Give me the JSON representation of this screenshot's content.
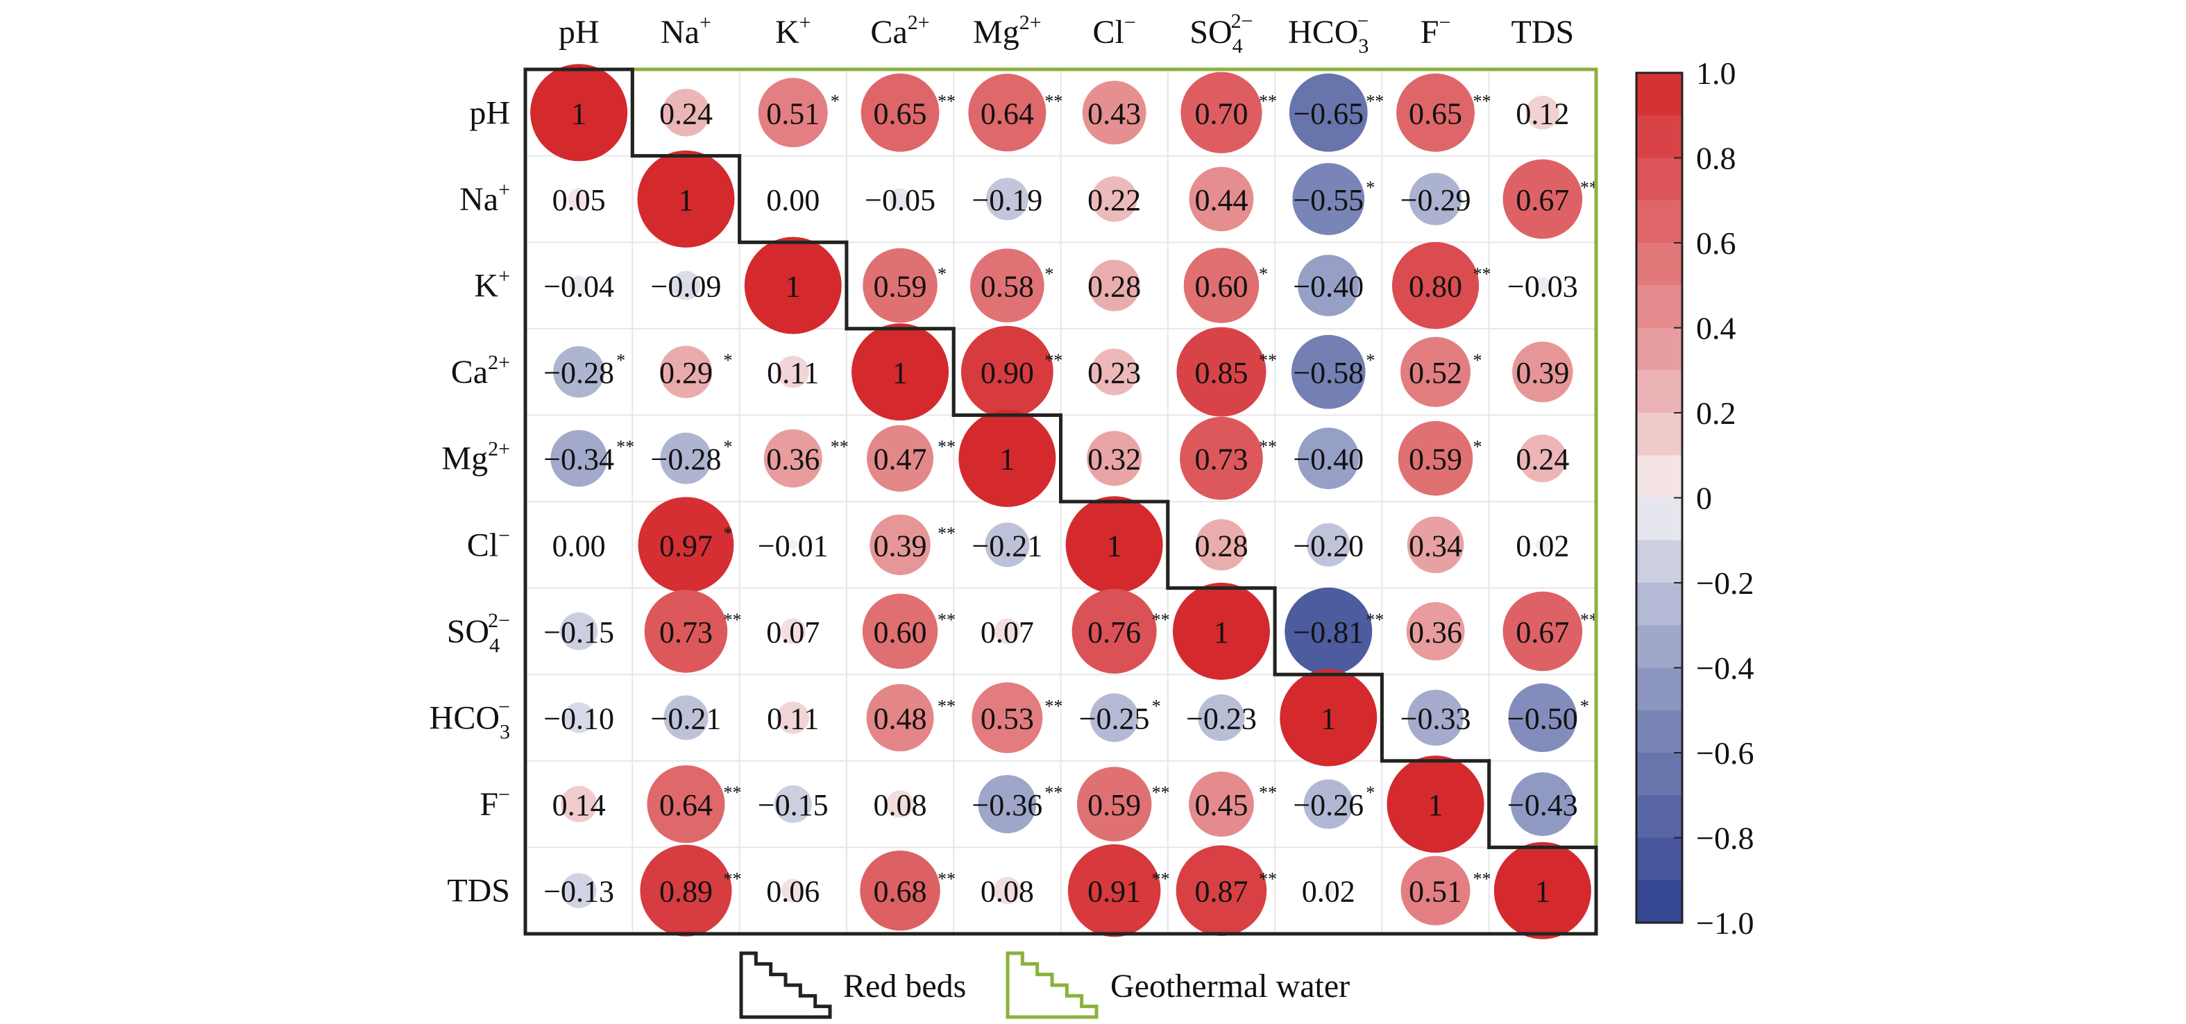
{
  "chart_data": {
    "type": "heatmap",
    "variables": [
      {
        "base": "pH",
        "sup": "",
        "sub": ""
      },
      {
        "base": "Na",
        "sup": "+",
        "sub": ""
      },
      {
        "base": "K",
        "sup": "+",
        "sub": ""
      },
      {
        "base": "Ca",
        "sup": "2+",
        "sub": ""
      },
      {
        "base": "Mg",
        "sup": "2+",
        "sub": ""
      },
      {
        "base": "Cl",
        "sup": "−",
        "sub": ""
      },
      {
        "base": "SO",
        "sup": "2−",
        "sub": "4"
      },
      {
        "base": "HCO",
        "sup": "−",
        "sub": "3"
      },
      {
        "base": "F",
        "sup": "−",
        "sub": ""
      },
      {
        "base": "TDS",
        "sup": "",
        "sub": ""
      }
    ],
    "matrix": [
      [
        "1",
        "0.24",
        "0.51",
        "0.65",
        "0.64",
        "0.43",
        "0.70",
        "−0.65",
        "0.65",
        "0.12"
      ],
      [
        "0.05",
        "1",
        "0.00",
        "−0.05",
        "−0.19",
        "0.22",
        "0.44",
        "−0.55",
        "−0.29",
        "0.67"
      ],
      [
        "−0.04",
        "−0.09",
        "1",
        "0.59",
        "0.58",
        "0.28",
        "0.60",
        "−0.40",
        "0.80",
        "−0.03"
      ],
      [
        "−0.28",
        "0.29",
        "0.11",
        "1",
        "0.90",
        "0.23",
        "0.85",
        "−0.58",
        "0.52",
        "0.39"
      ],
      [
        "−0.34",
        "−0.28",
        "0.36",
        "0.47",
        "1",
        "0.32",
        "0.73",
        "−0.40",
        "0.59",
        "0.24"
      ],
      [
        "0.00",
        "0.97",
        "−0.01",
        "0.39",
        "−0.21",
        "1",
        "0.28",
        "−0.20",
        "0.34",
        "0.02"
      ],
      [
        "−0.15",
        "0.73",
        "0.07",
        "0.60",
        "0.07",
        "0.76",
        "1",
        "−0.81",
        "0.36",
        "0.67"
      ],
      [
        "−0.10",
        "−0.21",
        "0.11",
        "0.48",
        "0.53",
        "−0.25",
        "−0.23",
        "1",
        "−0.33",
        "−0.50"
      ],
      [
        "0.14",
        "0.64",
        "−0.15",
        "0.08",
        "−0.36",
        "0.59",
        "0.45",
        "−0.26",
        "1",
        "−0.43"
      ],
      [
        "−0.13",
        "0.89",
        "0.06",
        "0.68",
        "0.08",
        "0.91",
        "0.87",
        "0.02",
        "0.51",
        "1"
      ]
    ],
    "significance": [
      [
        "",
        "",
        "*",
        "**",
        "**",
        "",
        "**",
        "**",
        "**",
        ""
      ],
      [
        "",
        "",
        "",
        "",
        "",
        "",
        "",
        "*",
        "",
        "**"
      ],
      [
        "",
        "",
        "",
        "*",
        "*",
        "",
        "*",
        "",
        "**",
        ""
      ],
      [
        "*",
        "*",
        "",
        "",
        "**",
        "",
        "**",
        "*",
        "*",
        ""
      ],
      [
        "**",
        "*",
        "**",
        "**",
        "",
        "",
        "**",
        "",
        "*",
        ""
      ],
      [
        "",
        "*",
        "",
        "**",
        "",
        "",
        "",
        "",
        "",
        ""
      ],
      [
        "",
        "**",
        "",
        "**",
        "",
        "**",
        "",
        "**",
        "",
        "**"
      ],
      [
        "",
        "",
        "",
        "**",
        "**",
        "*",
        "",
        "",
        "",
        "*"
      ],
      [
        "",
        "**",
        "",
        "",
        "**",
        "**",
        "**",
        "*",
        "",
        ""
      ],
      [
        "",
        "**",
        "",
        "**",
        "",
        "**",
        "**",
        "",
        "**",
        ""
      ]
    ],
    "colorbar": {
      "range": [
        -1.0,
        1.0
      ],
      "ticks": [
        "1.0",
        "0.8",
        "0.6",
        "0.4",
        "0.2",
        "0",
        "−0.2",
        "−0.4",
        "−0.6",
        "−0.8",
        "−1.0"
      ],
      "tick_values": [
        1.0,
        0.8,
        0.6,
        0.4,
        0.2,
        0,
        -0.2,
        -0.4,
        -0.6,
        -0.8,
        -1.0
      ],
      "positive_color": "#d42a2e",
      "negative_color": "#2d3f8f",
      "zero_color": "#f7f7f7"
    },
    "legend": [
      {
        "label": "Red beds",
        "color": "#222222",
        "region": "lower-triangle"
      },
      {
        "label": "Geothermal water",
        "color": "#8ab23a",
        "region": "upper-triangle"
      }
    ]
  }
}
